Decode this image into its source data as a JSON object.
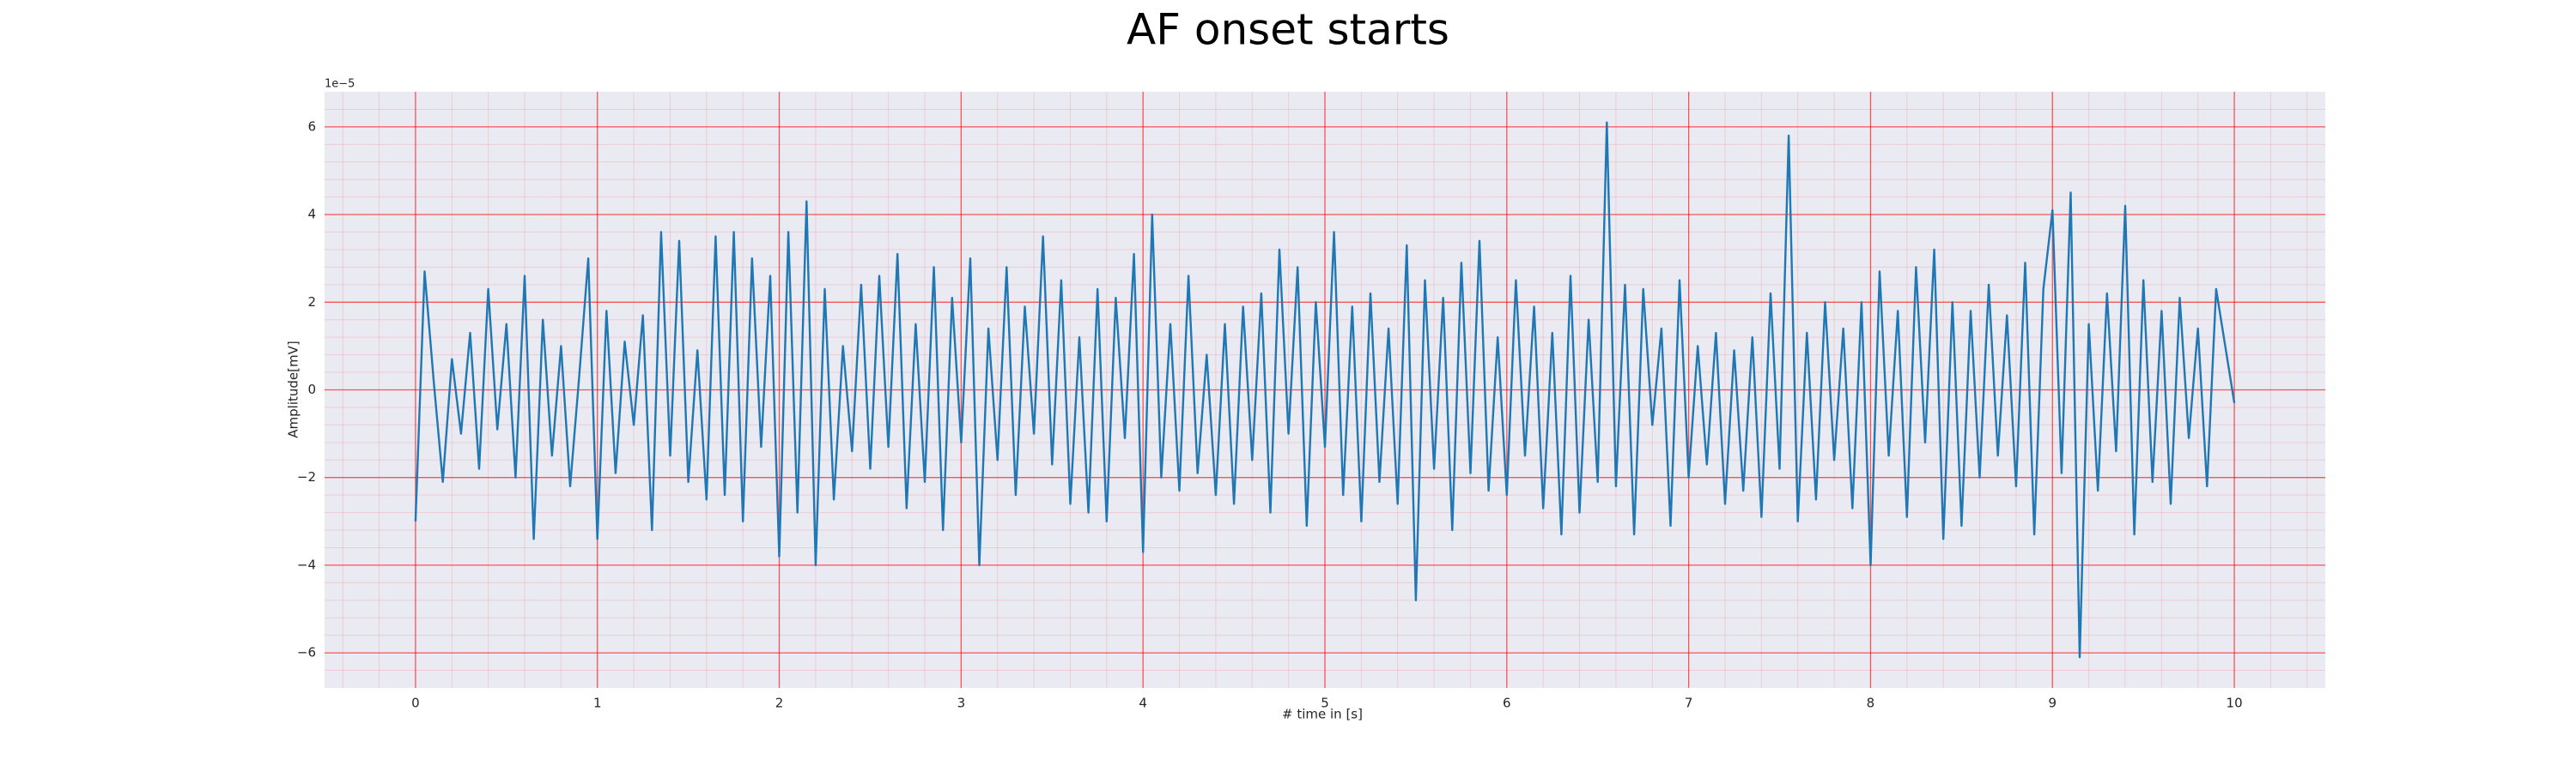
{
  "chart_data": {
    "type": "line",
    "title": "AF onset starts",
    "xlabel": "# time in [s]",
    "ylabel": "Amplitude[mV]",
    "offset_label": "1e−5",
    "x": [
      0,
      0.05,
      0.1,
      0.15,
      0.2,
      0.25,
      0.3,
      0.35,
      0.4,
      0.45,
      0.5,
      0.55,
      0.6,
      0.65,
      0.7,
      0.75,
      0.8,
      0.85,
      0.9,
      0.95,
      1,
      1.05,
      1.1,
      1.15,
      1.2,
      1.25,
      1.3,
      1.35,
      1.4,
      1.45,
      1.5,
      1.55,
      1.6,
      1.65,
      1.7,
      1.75,
      1.8,
      1.85,
      1.9,
      1.95,
      2,
      2.05,
      2.1,
      2.15,
      2.2,
      2.25,
      2.3,
      2.35,
      2.4,
      2.45,
      2.5,
      2.55,
      2.6,
      2.65,
      2.7,
      2.75,
      2.8,
      2.85,
      2.9,
      2.95,
      3,
      3.05,
      3.1,
      3.15,
      3.2,
      3.25,
      3.3,
      3.35,
      3.4,
      3.45,
      3.5,
      3.55,
      3.6,
      3.65,
      3.7,
      3.75,
      3.8,
      3.85,
      3.9,
      3.95,
      4,
      4.05,
      4.1,
      4.15,
      4.2,
      4.25,
      4.3,
      4.35,
      4.4,
      4.45,
      4.5,
      4.55,
      4.6,
      4.65,
      4.7,
      4.75,
      4.8,
      4.85,
      4.9,
      4.95,
      5,
      5.05,
      5.1,
      5.15,
      5.2,
      5.25,
      5.3,
      5.35,
      5.4,
      5.45,
      5.5,
      5.55,
      5.6,
      5.65,
      5.7,
      5.75,
      5.8,
      5.85,
      5.9,
      5.95,
      6,
      6.05,
      6.1,
      6.15,
      6.2,
      6.25,
      6.3,
      6.35,
      6.4,
      6.45,
      6.5,
      6.55,
      6.6,
      6.65,
      6.7,
      6.75,
      6.8,
      6.85,
      6.9,
      6.95,
      7,
      7.05,
      7.1,
      7.15,
      7.2,
      7.25,
      7.3,
      7.35,
      7.4,
      7.45,
      7.5,
      7.55,
      7.6,
      7.65,
      7.7,
      7.75,
      7.8,
      7.85,
      7.9,
      7.95,
      8,
      8.05,
      8.1,
      8.15,
      8.2,
      8.25,
      8.3,
      8.35,
      8.4,
      8.45,
      8.5,
      8.55,
      8.6,
      8.65,
      8.7,
      8.75,
      8.8,
      8.85,
      8.9,
      8.95,
      9,
      9.05,
      9.1,
      9.15,
      9.2,
      9.25,
      9.3,
      9.35,
      9.4,
      9.45,
      9.5,
      9.55,
      9.6,
      9.65,
      9.7,
      9.75,
      9.8,
      9.85,
      9.9,
      9.95,
      10
    ],
    "series": [
      {
        "color": "#1f77b4",
        "values": [
          -3.0,
          2.7,
          0.2,
          -2.1,
          0.7,
          -1.0,
          1.3,
          -1.8,
          2.3,
          -0.9,
          1.5,
          -2.0,
          2.6,
          -3.4,
          1.6,
          -1.5,
          1.0,
          -2.2,
          0.3,
          3.0,
          -3.4,
          1.8,
          -1.9,
          1.1,
          -0.8,
          1.7,
          -3.2,
          3.6,
          -1.5,
          3.4,
          -2.1,
          0.9,
          -2.5,
          3.5,
          -2.4,
          3.6,
          -3.0,
          3.0,
          -1.3,
          2.6,
          -3.8,
          3.6,
          -2.8,
          4.3,
          -4.0,
          2.3,
          -2.5,
          1.0,
          -1.4,
          2.4,
          -1.8,
          2.6,
          -1.3,
          3.1,
          -2.7,
          1.5,
          -2.1,
          2.8,
          -3.2,
          2.1,
          -1.2,
          3.0,
          -4.0,
          1.4,
          -1.6,
          2.8,
          -2.4,
          1.9,
          -1.0,
          3.5,
          -1.7,
          2.5,
          -2.6,
          1.2,
          -2.8,
          2.3,
          -3.0,
          2.1,
          -1.1,
          3.1,
          -3.7,
          4.0,
          -2.0,
          1.5,
          -2.3,
          2.6,
          -1.9,
          0.8,
          -2.4,
          1.5,
          -2.6,
          1.9,
          -1.6,
          2.2,
          -2.8,
          3.2,
          -1.0,
          2.8,
          -3.1,
          2.0,
          -1.3,
          3.6,
          -2.4,
          1.9,
          -3.0,
          2.2,
          -2.1,
          1.4,
          -2.6,
          3.3,
          -4.8,
          2.5,
          -1.8,
          2.1,
          -3.2,
          2.9,
          -1.9,
          3.4,
          -2.3,
          1.2,
          -2.4,
          2.5,
          -1.5,
          1.9,
          -2.7,
          1.3,
          -3.3,
          2.6,
          -2.8,
          1.6,
          -2.1,
          6.1,
          -2.2,
          2.4,
          -3.3,
          2.3,
          -0.8,
          1.4,
          -3.1,
          2.5,
          -2.0,
          1.0,
          -1.7,
          1.3,
          -2.6,
          0.9,
          -2.3,
          1.2,
          -2.9,
          2.2,
          -1.8,
          5.8,
          -3.0,
          1.3,
          -2.5,
          2.0,
          -1.6,
          1.4,
          -2.7,
          2.0,
          -4.0,
          2.7,
          -1.5,
          1.8,
          -2.9,
          2.8,
          -1.2,
          3.2,
          -3.4,
          2.0,
          -3.1,
          1.8,
          -2.0,
          2.4,
          -1.5,
          1.7,
          -2.2,
          2.9,
          -3.3,
          2.3,
          4.1,
          -1.9,
          4.5,
          -6.1,
          1.5,
          -2.3,
          2.2,
          -1.4,
          4.2,
          -3.3,
          2.5,
          -2.1,
          1.8,
          -2.6,
          2.1,
          -1.1,
          1.4,
          -2.2,
          2.3,
          1.0,
          -0.3
        ]
      }
    ],
    "xlim": [
      -0.5,
      10.5
    ],
    "xticks": [
      0,
      1,
      2,
      3,
      4,
      5,
      6,
      7,
      8,
      9,
      10
    ],
    "ylim": [
      -6.8,
      6.8
    ],
    "yticks": [
      {
        "value": -6,
        "label": "−6"
      },
      {
        "value": -4,
        "label": "−4"
      },
      {
        "value": -2,
        "label": "−2"
      },
      0,
      2,
      4,
      6
    ],
    "grid": true,
    "grid_color": "#ff0000",
    "minor_grid": true,
    "background": "#eaeaf2"
  }
}
